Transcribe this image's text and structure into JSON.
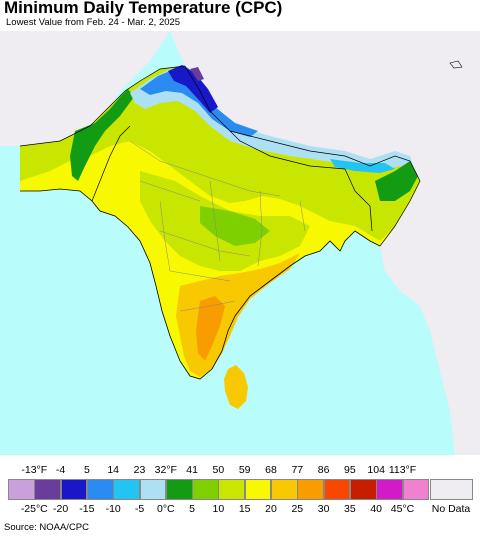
{
  "header": {
    "title": "Minimum Daily Temperature (CPC)",
    "subtitle": "Lowest Value from Feb. 24 - Mar. 2, 2025"
  },
  "legend": {
    "fahrenheit_labels": [
      "-13°F",
      "-4",
      "5",
      "14",
      "23",
      "32°F",
      "41",
      "50",
      "59",
      "68",
      "77",
      "86",
      "95",
      "104",
      "113°F"
    ],
    "celsius_labels": [
      "-25°C",
      "-20",
      "-15",
      "-10",
      "-5",
      "0°C",
      "5",
      "10",
      "15",
      "20",
      "25",
      "30",
      "35",
      "40",
      "45°C"
    ],
    "colors": [
      "#c9a0dc",
      "#6a3d9a",
      "#1818c8",
      "#2a8cf0",
      "#22c4f4",
      "#aee0f4",
      "#139c13",
      "#7fd000",
      "#c8e600",
      "#f8f800",
      "#f8c800",
      "#f89c00",
      "#f84800",
      "#c81e00",
      "#d21ac8",
      "#f080d0"
    ],
    "no_data_label": "No Data",
    "no_data_color": "#f0edf2"
  },
  "source": "Source: NOAA/CPC",
  "map": {
    "ocean_color": "#b8fcfc",
    "outside_color": "#f0edf2"
  }
}
